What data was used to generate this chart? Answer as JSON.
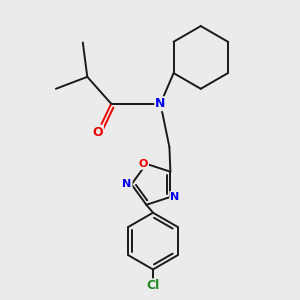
{
  "bg_color": "#ebebeb",
  "bond_color": "#1a1a1a",
  "N_color": "#0000ee",
  "O_color": "#ee0000",
  "Cl_color": "#228822",
  "bond_width": 1.4,
  "figsize": [
    3.0,
    3.0
  ],
  "dpi": 100,
  "xlim": [
    0,
    10
  ],
  "ylim": [
    0,
    10
  ]
}
